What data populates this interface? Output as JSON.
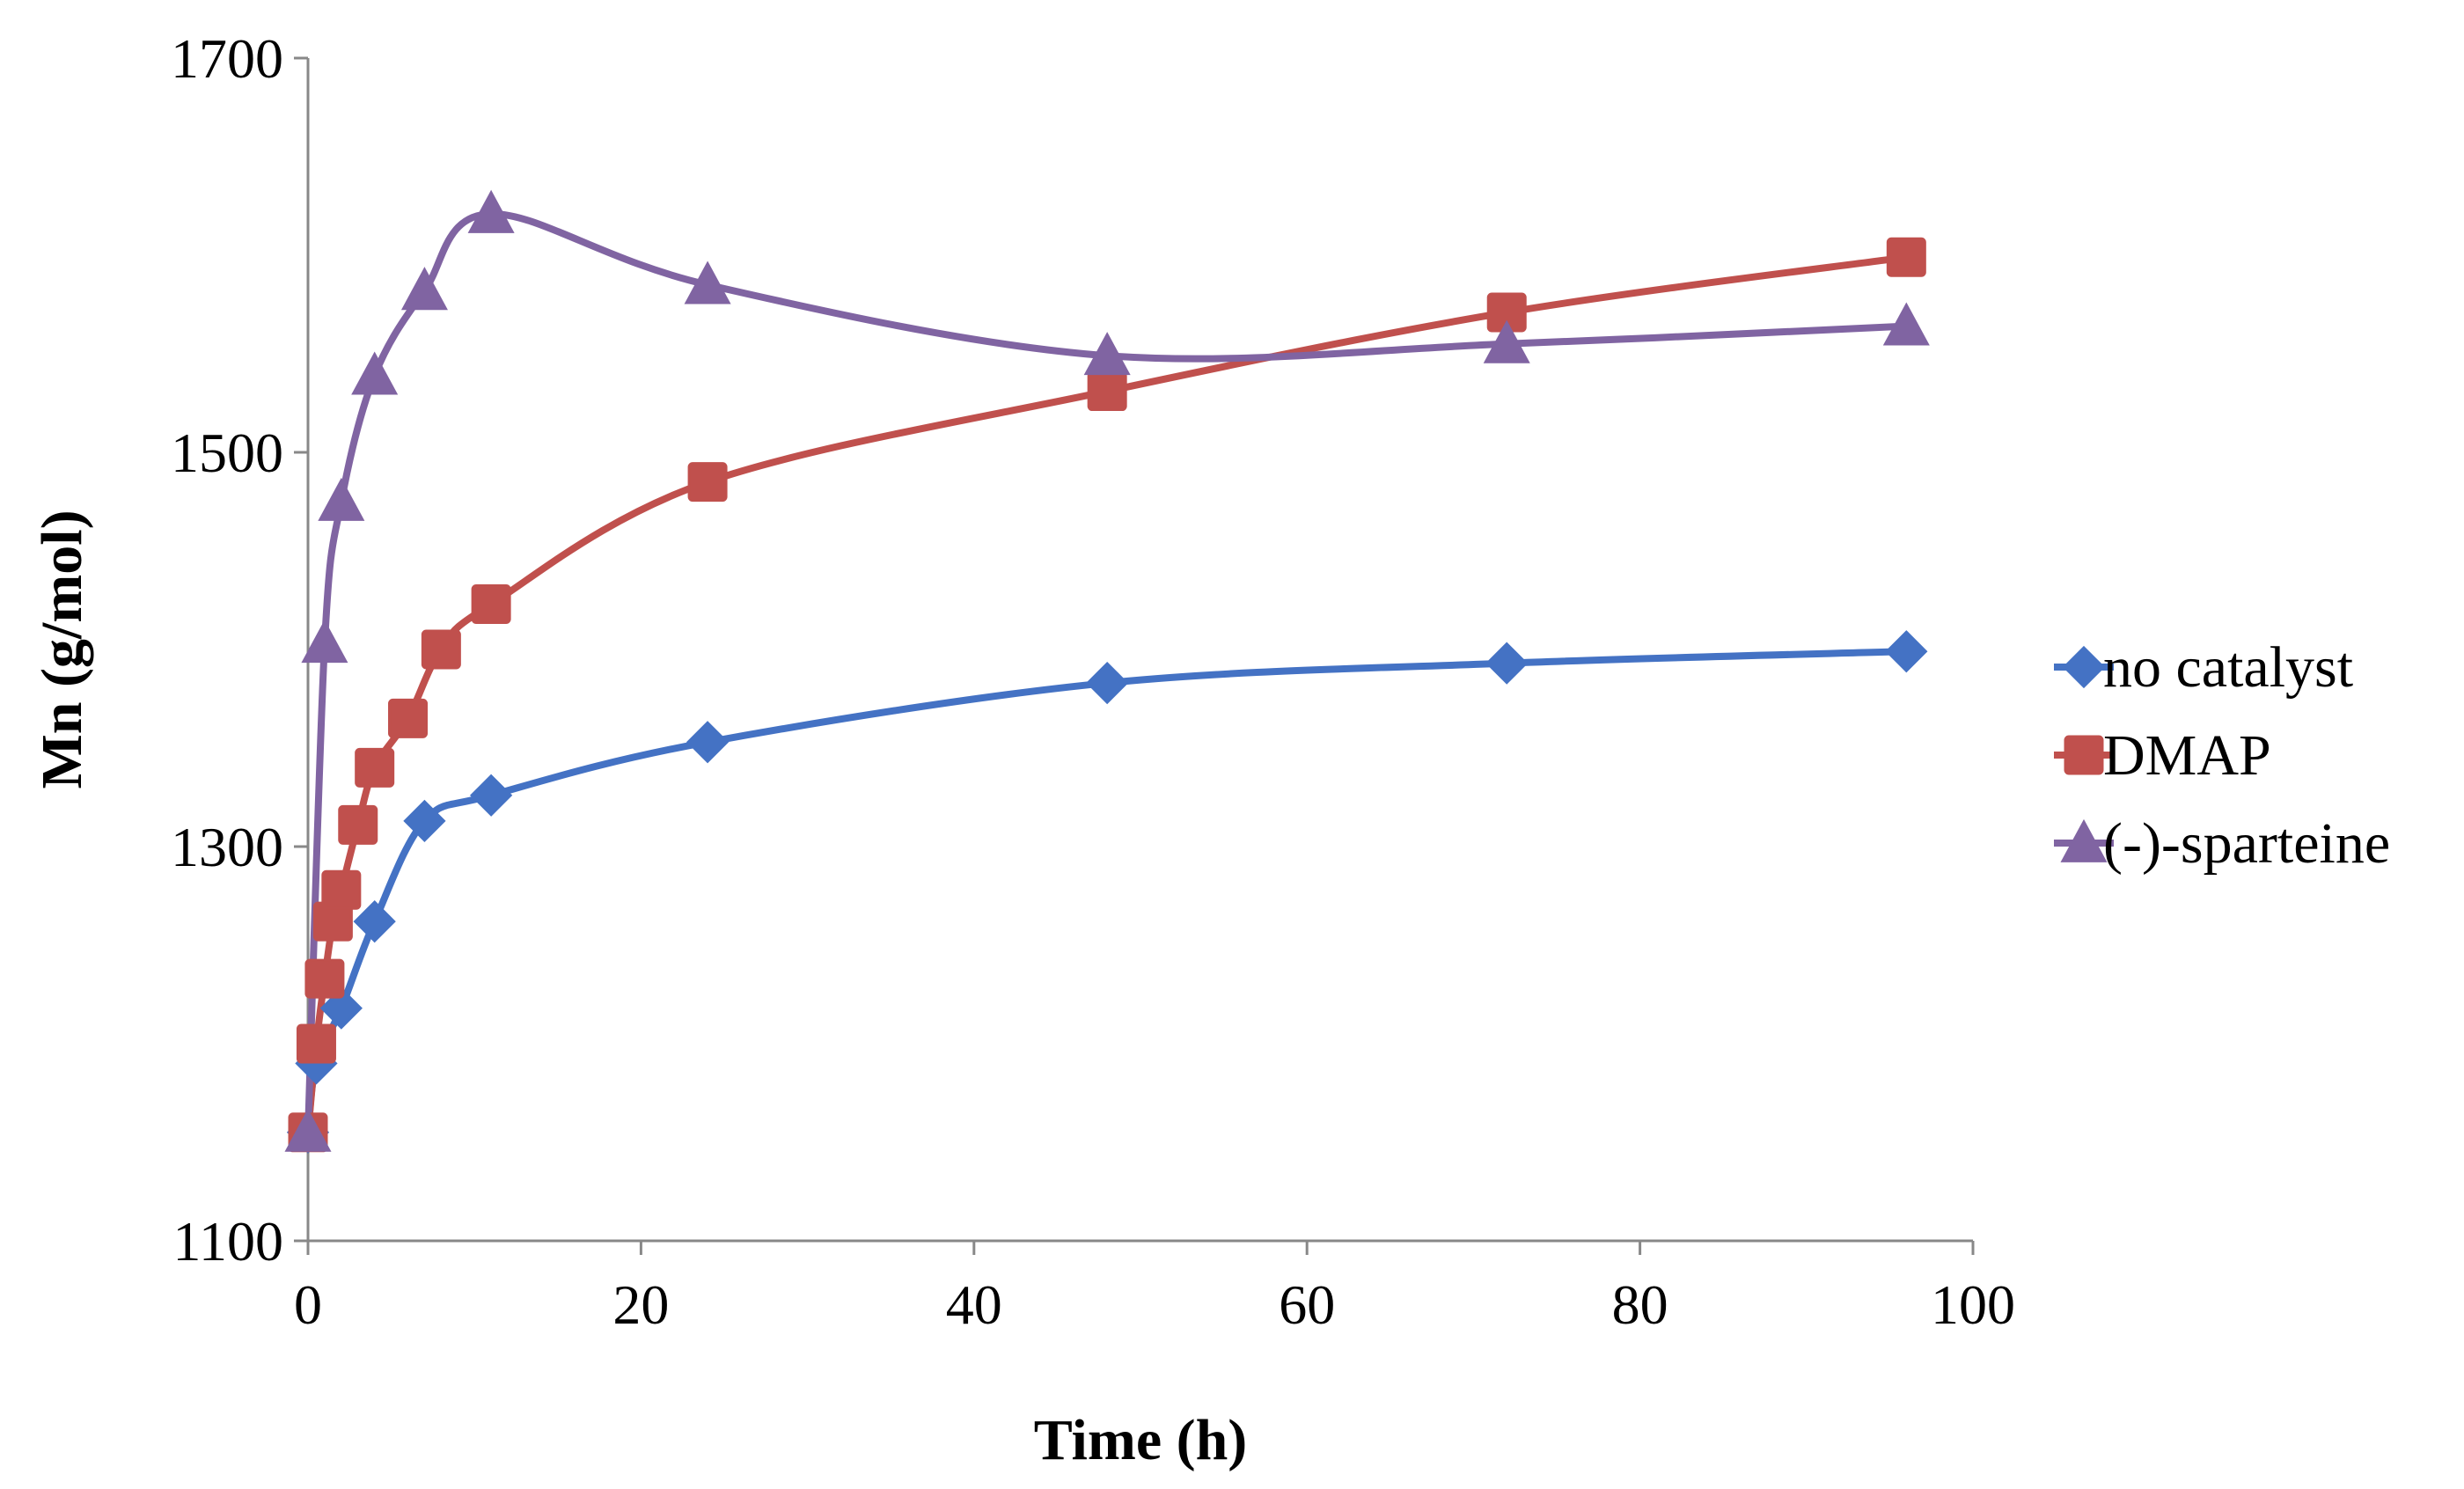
{
  "chart_data": {
    "type": "line",
    "xlabel": "Time (h)",
    "ylabel": "Mn (g/mol)",
    "xlim": [
      0,
      100
    ],
    "ylim": [
      1100,
      1700
    ],
    "xticks": [
      0,
      20,
      40,
      60,
      80,
      100
    ],
    "yticks": [
      1100,
      1300,
      1500,
      1700
    ],
    "grid": false,
    "legend_position": "right",
    "series": [
      {
        "name": "no catalyst",
        "color": "#4472C4",
        "marker": "diamond",
        "x": [
          0,
          0.5,
          2,
          4,
          7,
          11,
          24,
          48,
          72,
          96
        ],
        "y": [
          1155,
          1190,
          1218,
          1262,
          1313,
          1326,
          1353,
          1383,
          1393,
          1399
        ]
      },
      {
        "name": "DMAP",
        "color": "#C0504D",
        "marker": "square",
        "x": [
          0,
          0.5,
          1,
          1.5,
          2,
          3,
          4,
          6,
          8,
          11,
          24,
          48,
          72,
          96
        ],
        "y": [
          1155,
          1200,
          1233,
          1262,
          1278,
          1311,
          1340,
          1365,
          1400,
          1423,
          1485,
          1531,
          1571,
          1599
        ]
      },
      {
        "name": "(-)-sparteine",
        "color": "#8064A2",
        "marker": "triangle",
        "x": [
          0,
          1,
          2,
          4,
          7,
          11,
          24,
          48,
          72,
          96
        ],
        "y": [
          1155,
          1403,
          1475,
          1539,
          1582,
          1621,
          1585,
          1549,
          1555,
          1564
        ]
      }
    ]
  }
}
